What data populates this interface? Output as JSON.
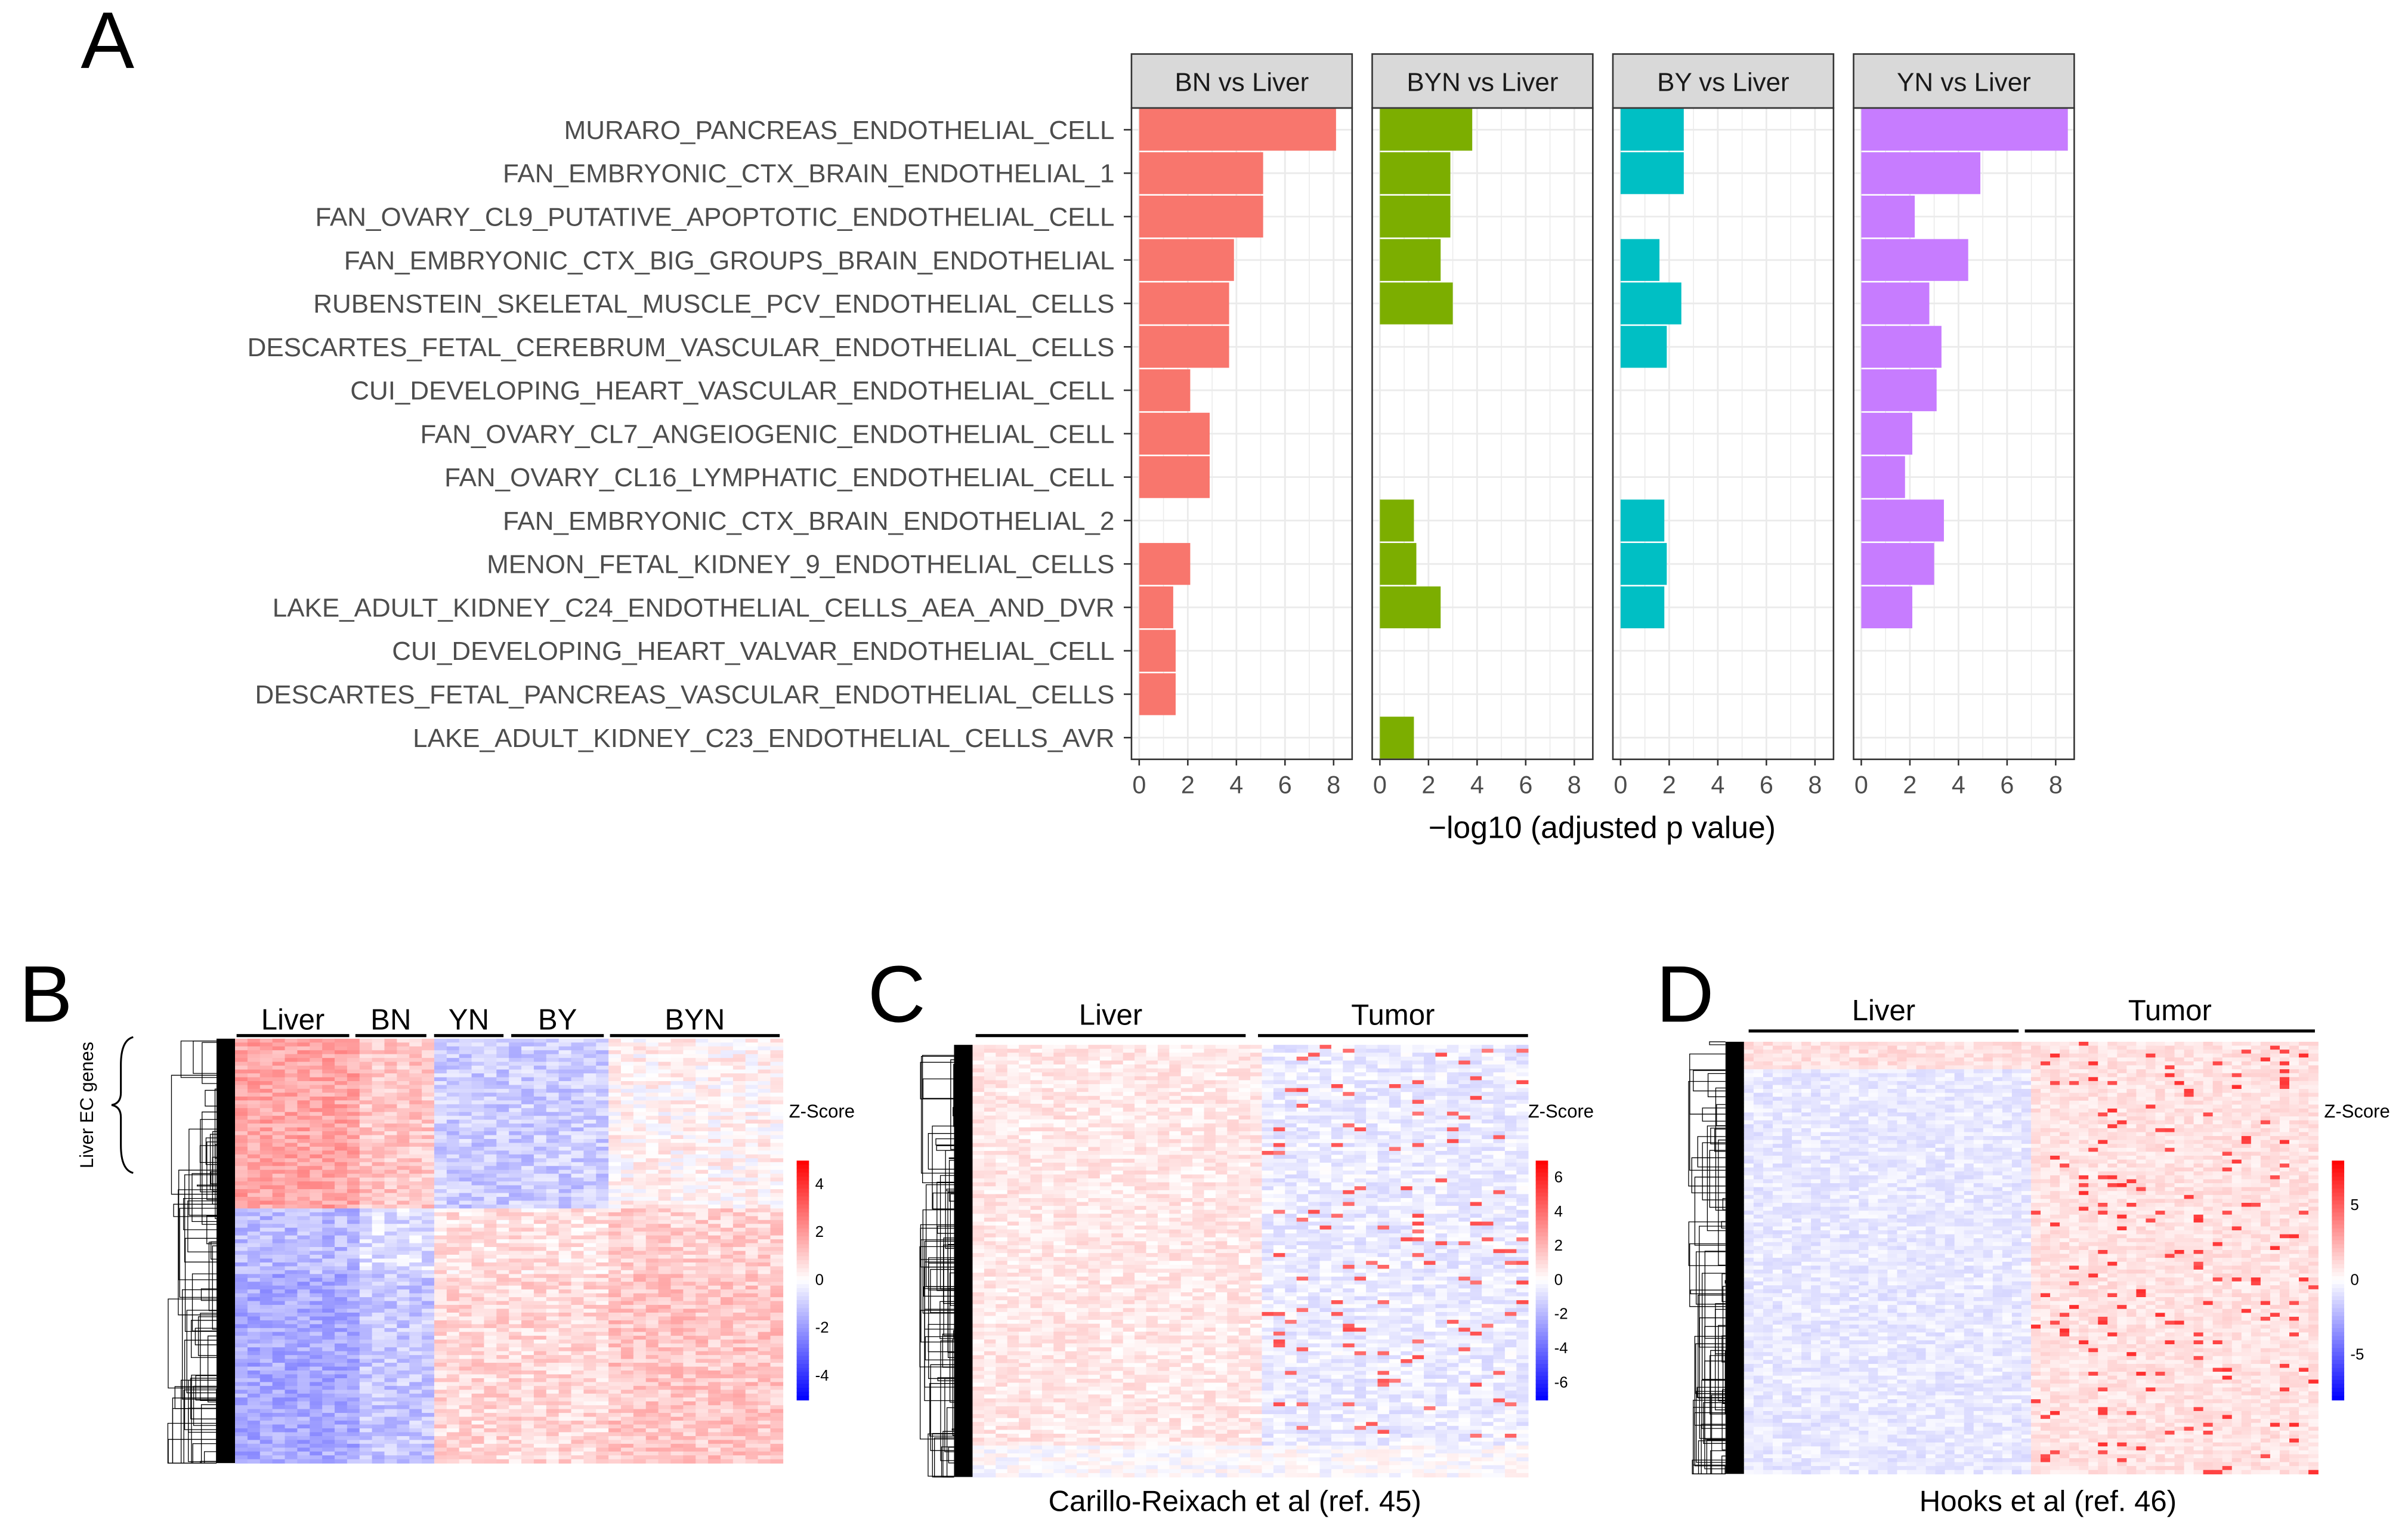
{
  "chart_data": [
    {
      "type": "bar",
      "panel_letter": "A",
      "orientation": "horizontal",
      "xlabel": "−log10 (adjusted p value)",
      "xlim": [
        0,
        8.7
      ],
      "xticks": [
        "0",
        "2",
        "4",
        "6",
        "8"
      ],
      "categories": [
        "MURARO_PANCREAS_ENDOTHELIAL_CELL",
        "FAN_EMBRYONIC_CTX_BRAIN_ENDOTHELIAL_1",
        "FAN_OVARY_CL9_PUTATIVE_APOPTOTIC_ENDOTHELIAL_CELL",
        "FAN_EMBRYONIC_CTX_BIG_GROUPS_BRAIN_ENDOTHELIAL",
        "RUBENSTEIN_SKELETAL_MUSCLE_PCV_ENDOTHELIAL_CELLS",
        "DESCARTES_FETAL_CEREBRUM_VASCULAR_ENDOTHELIAL_CELLS",
        "CUI_DEVELOPING_HEART_VASCULAR_ENDOTHELIAL_CELL",
        "FAN_OVARY_CL7_ANGEIOGENIC_ENDOTHELIAL_CELL",
        "FAN_OVARY_CL16_LYMPHATIC_ENDOTHELIAL_CELL",
        "FAN_EMBRYONIC_CTX_BRAIN_ENDOTHELIAL_2",
        "MENON_FETAL_KIDNEY_9_ENDOTHELIAL_CELLS",
        "LAKE_ADULT_KIDNEY_C24_ENDOTHELIAL_CELLS_AEA_AND_DVR",
        "CUI_DEVELOPING_HEART_VALVAR_ENDOTHELIAL_CELL",
        "DESCARTES_FETAL_PANCREAS_VASCULAR_ENDOTHELIAL_CELLS",
        "LAKE_ADULT_KIDNEY_C23_ENDOTHELIAL_CELLS_AVR"
      ],
      "series": [
        {
          "name": "BN vs Liver",
          "color": "#F8766D",
          "values": [
            8.1,
            5.1,
            5.1,
            3.9,
            3.7,
            3.7,
            2.1,
            2.9,
            2.9,
            null,
            2.1,
            1.4,
            1.5,
            1.5,
            null
          ]
        },
        {
          "name": "BYN vs Liver",
          "color": "#7CAE00",
          "values": [
            3.8,
            2.9,
            2.9,
            2.5,
            3.0,
            null,
            null,
            null,
            null,
            1.4,
            1.5,
            2.5,
            null,
            null,
            1.4
          ]
        },
        {
          "name": "BY vs Liver",
          "color": "#00BFC4",
          "values": [
            2.6,
            2.6,
            null,
            1.6,
            2.5,
            1.9,
            null,
            null,
            null,
            1.8,
            1.9,
            1.8,
            null,
            null,
            null
          ]
        },
        {
          "name": "YN vs Liver",
          "color": "#C77CFF",
          "values": [
            8.5,
            4.9,
            2.2,
            4.4,
            2.8,
            3.3,
            3.1,
            2.1,
            1.8,
            3.4,
            3.0,
            2.1,
            null,
            null,
            null
          ]
        }
      ]
    },
    {
      "type": "heatmap",
      "panel_letter": "B",
      "row_annotation": "Liver EC genes",
      "groups": [
        "Liver",
        "BN",
        "YN",
        "BY",
        "BYN"
      ],
      "legend_title": "Z-Score",
      "colorbar_ticks": [
        "4",
        "2",
        "0",
        "-2",
        "-4"
      ],
      "colorbar_range": [
        -5,
        5
      ],
      "colors": {
        "low": "#0000FF",
        "mid": "#FFFFFF",
        "high": "#FF0000"
      }
    },
    {
      "type": "heatmap",
      "panel_letter": "C",
      "groups": [
        "Liver",
        "Tumor"
      ],
      "caption": "Carillo-Reixach et al (ref. 45)",
      "legend_title": "Z-Score",
      "colorbar_ticks": [
        "6",
        "4",
        "2",
        "0",
        "-2",
        "-4",
        "-6"
      ],
      "colorbar_range": [
        -7,
        7
      ]
    },
    {
      "type": "heatmap",
      "panel_letter": "D",
      "groups": [
        "Liver",
        "Tumor"
      ],
      "caption": "Hooks et al (ref. 46)",
      "legend_title": "Z-Score",
      "colorbar_ticks": [
        "5",
        "0",
        "-5"
      ],
      "colorbar_range": [
        -8,
        8
      ]
    }
  ]
}
